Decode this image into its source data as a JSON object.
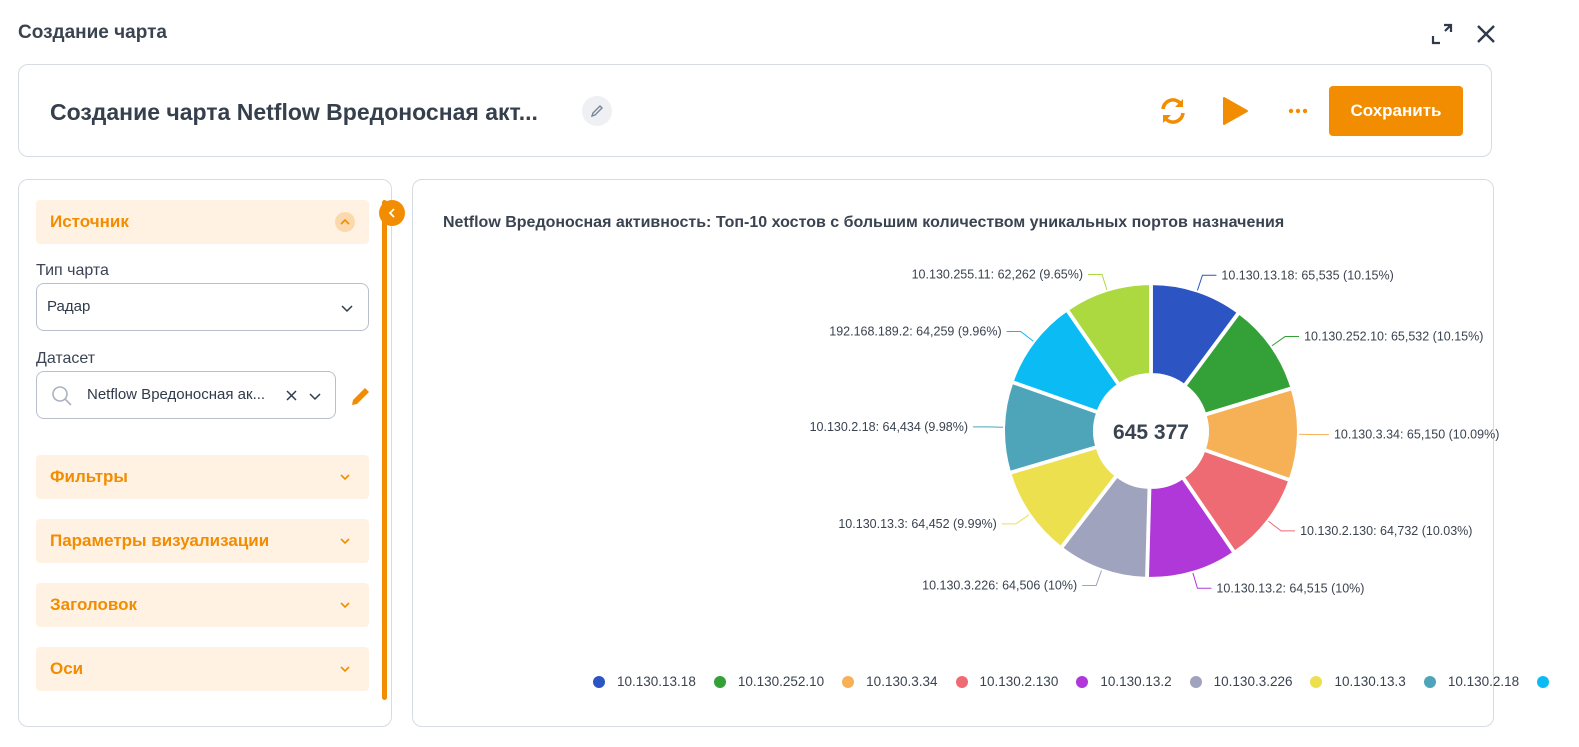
{
  "modal": {
    "title": "Создание чарта"
  },
  "header": {
    "title": "Создание чарта Netflow Вредоносная акт...",
    "save_label": "Сохранить"
  },
  "sidebar": {
    "source_label": "Источник",
    "chart_type_label": "Тип чарта",
    "chart_type_value": "Радар",
    "dataset_label": "Датасет",
    "dataset_value": "Netflow Вредоносная ак...",
    "sections": [
      {
        "label": "Фильтры"
      },
      {
        "label": "Параметры визуализации"
      },
      {
        "label": "Заголовок"
      },
      {
        "label": "Оси"
      }
    ]
  },
  "colors": {
    "accent": "#f28c00",
    "accent_light": "#fff2e2"
  },
  "chart_data": {
    "type": "pie",
    "title": "Netflow Вредоносная активность: Топ-10 хостов с большим количеством уникальных портов назначения",
    "total_label": "645 377",
    "slices": [
      {
        "name": "10.130.13.18",
        "value": 65535,
        "label": "10.130.13.18: 65,535 (10.15%)",
        "color": "#2c55c3"
      },
      {
        "name": "10.130.252.10",
        "value": 65532,
        "label": "10.130.252.10: 65,532 (10.15%)",
        "color": "#33a137"
      },
      {
        "name": "10.130.3.34",
        "value": 65150,
        "label": "10.130.3.34: 65,150 (10.09%)",
        "color": "#f6b055"
      },
      {
        "name": "10.130.2.130",
        "value": 64732,
        "label": "10.130.2.130: 64,732 (10.03%)",
        "color": "#ee6b73"
      },
      {
        "name": "10.130.13.2",
        "value": 64515,
        "label": "10.130.13.2: 64,515 (10%)",
        "color": "#b038d8"
      },
      {
        "name": "10.130.3.226",
        "value": 64506,
        "label": "10.130.3.226: 64,506 (10%)",
        "color": "#a0a3bd"
      },
      {
        "name": "10.130.13.3",
        "value": 64452,
        "label": "10.130.13.3: 64,452 (9.99%)",
        "color": "#ece04f"
      },
      {
        "name": "10.130.2.18",
        "value": 64434,
        "label": "10.130.2.18: 64,434 (9.98%)",
        "color": "#4ea5b9"
      },
      {
        "name": "192.168.189.2",
        "value": 64259,
        "label": "192.168.189.2: 64,259 (9.96%)",
        "color": "#0bbbf4"
      },
      {
        "name": "10.130.255.11",
        "value": 62262,
        "label": "10.130.255.11: 62,262 (9.65%)",
        "color": "#acd940"
      }
    ],
    "legend_visible": [
      "10.130.13.18",
      "10.130.252.10",
      "10.130.3.34",
      "10.130.2.130",
      "10.130.13.2",
      "10.130.3.226",
      "10.130.13.3",
      "10.130.2.18",
      ""
    ],
    "legend_position": "bottom"
  }
}
